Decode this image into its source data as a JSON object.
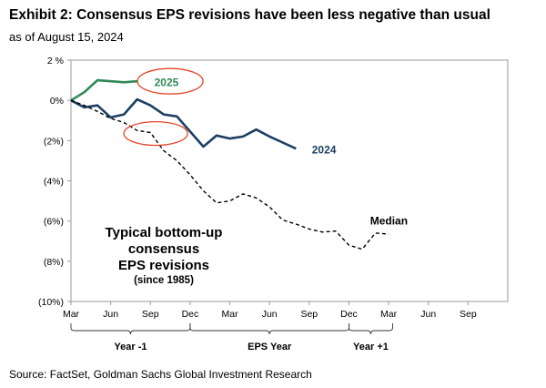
{
  "header": {
    "title": "Exhibit 2: Consensus EPS revisions have been less negative than usual",
    "subtitle": "as of August 15, 2024"
  },
  "footer": {
    "source": "Source: FactSet, Goldman Sachs Global Investment Research"
  },
  "chart_data": {
    "type": "line",
    "title": "Exhibit 2: Consensus EPS revisions have been less negative than usual",
    "subtitle": "as of August 15, 2024",
    "xlabel": "",
    "ylabel": "",
    "x_unit": "months from March of year -1",
    "xlim": [
      0,
      33
    ],
    "ylim": [
      -10,
      2
    ],
    "y_ticks": [
      2,
      0,
      -2,
      -4,
      -6,
      -8,
      -10
    ],
    "y_tick_labels": [
      "2 %",
      "0%",
      "(2%)",
      "(4%)",
      "(6%)",
      "(8%)",
      "(10%)"
    ],
    "x_ticks": [
      0,
      3,
      6,
      9,
      12,
      15,
      18,
      21,
      24,
      27,
      30
    ],
    "x_tick_labels": [
      "Mar",
      "Jun",
      "Sep",
      "Dec",
      "Mar",
      "Jun",
      "Sep",
      "Dec",
      "Mar",
      "Jun",
      "Sep"
    ],
    "x_ticks_fixed": [
      {
        "x": 0,
        "label": "Mar"
      },
      {
        "x": 3,
        "label": "Jun"
      },
      {
        "x": 6,
        "label": "Sep"
      },
      {
        "x": 9,
        "label": "Dec"
      },
      {
        "x": 12,
        "label": "Mar"
      },
      {
        "x": 15,
        "label": "Jun"
      },
      {
        "x": 18,
        "label": "Sep"
      },
      {
        "x": 21,
        "label": "Dec"
      },
      {
        "x": 24,
        "label": "Mar"
      }
    ],
    "periods": [
      {
        "label": "Year -1",
        "from": 0,
        "to": 9
      },
      {
        "label": "EPS Year",
        "from": 9,
        "to": 21
      },
      {
        "label": "Year +1",
        "from": 21,
        "to": 24.3
      }
    ],
    "grid": false,
    "series": [
      {
        "name": "2025",
        "color": "#2e8b57",
        "style": "solid",
        "x": [
          0,
          1,
          2,
          3,
          4,
          5
        ],
        "y": [
          0,
          0.4,
          1.0,
          0.95,
          0.9,
          0.95
        ]
      },
      {
        "name": "2024",
        "color": "#1c3f63",
        "style": "solid",
        "x": [
          0,
          1,
          2,
          3,
          4,
          5,
          6,
          7,
          8,
          9,
          10,
          11,
          12,
          13,
          14,
          15,
          16,
          17
        ],
        "y": [
          0,
          -0.35,
          -0.25,
          -0.85,
          -0.7,
          0.05,
          -0.25,
          -0.7,
          -0.8,
          -1.55,
          -2.3,
          -1.75,
          -1.9,
          -1.8,
          -1.45,
          -1.8,
          -2.1,
          -2.4
        ]
      },
      {
        "name": "Median",
        "color": "#000000",
        "style": "dashed",
        "x": [
          0,
          1,
          2,
          3,
          4,
          5,
          6,
          7,
          8,
          9,
          10,
          11,
          12,
          13,
          14,
          15,
          16,
          17,
          18,
          19,
          20,
          21,
          22,
          23,
          24
        ],
        "y": [
          0,
          -0.25,
          -0.55,
          -0.9,
          -1.1,
          -1.5,
          -1.6,
          -2.5,
          -3.0,
          -3.7,
          -4.5,
          -5.1,
          -5.0,
          -4.65,
          -4.85,
          -5.3,
          -5.95,
          -6.15,
          -6.4,
          -6.55,
          -6.5,
          -7.2,
          -7.4,
          -6.6,
          -6.65
        ]
      }
    ],
    "annotations": {
      "typical_line1": "Typical bottom-up",
      "typical_line2": "consensus",
      "typical_line3": "EPS revisions",
      "typical_line4": "(since 1985)",
      "circle_color": "#e2472b"
    }
  }
}
